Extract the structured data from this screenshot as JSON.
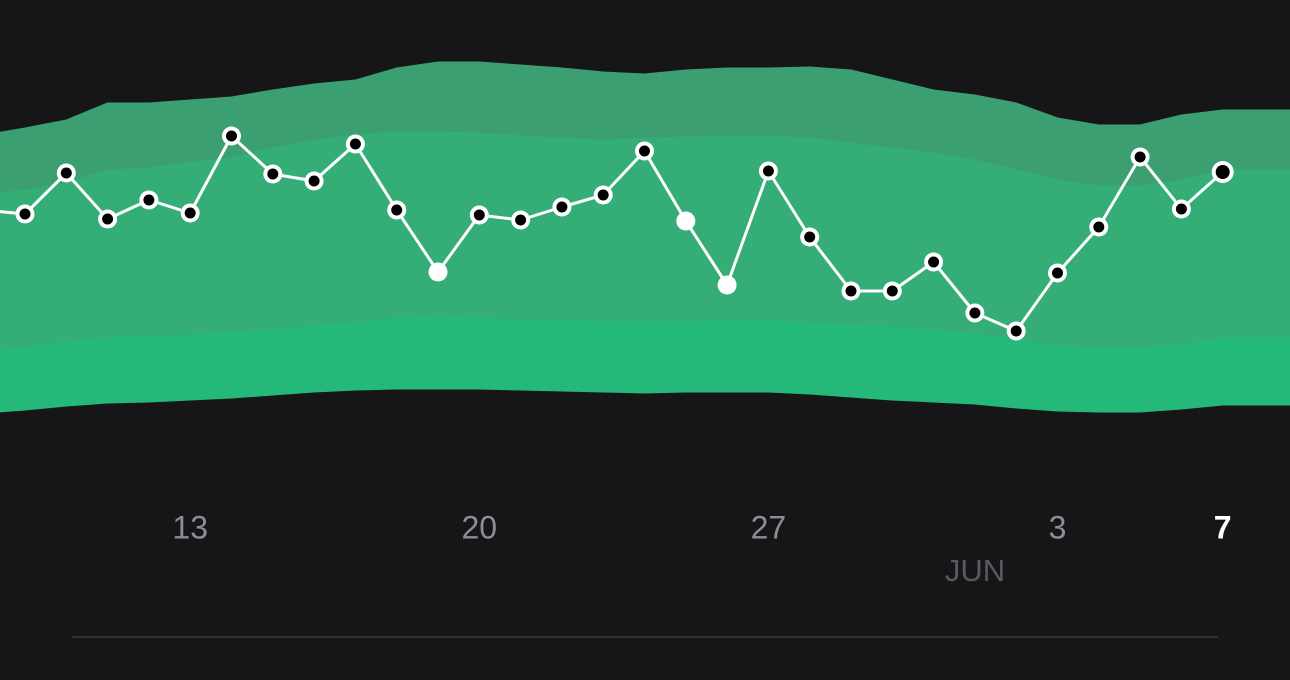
{
  "chart_data": {
    "type": "line",
    "categories": [
      null,
      null,
      null,
      null,
      null,
      "13",
      null,
      null,
      null,
      null,
      null,
      null,
      "20",
      null,
      null,
      null,
      null,
      null,
      null,
      "27",
      null,
      null,
      null,
      null,
      null,
      null,
      "3",
      null,
      null,
      null,
      "7"
    ],
    "month_label": "JUN",
    "ylim": [
      0,
      680
    ],
    "bands": [
      {
        "color": "#3b9f71",
        "upper": [
          545,
          552,
          560,
          577,
          577,
          580,
          583,
          590,
          596,
          600,
          612,
          618,
          618,
          615,
          612,
          608,
          606,
          610,
          612,
          612,
          613,
          610,
          600,
          590,
          585,
          577,
          562,
          555,
          555,
          565,
          570
        ],
        "lower": [
          485,
          490,
          497,
          510,
          512,
          518,
          522,
          532,
          540,
          545,
          548,
          548,
          547,
          544,
          542,
          540,
          542,
          543,
          544,
          544,
          542,
          537,
          532,
          527,
          520,
          510,
          500,
          494,
          494,
          500,
          510
        ]
      },
      {
        "color": "#34ad77",
        "upper": [
          485,
          490,
          497,
          510,
          512,
          518,
          522,
          532,
          540,
          545,
          548,
          548,
          547,
          544,
          542,
          540,
          542,
          543,
          544,
          544,
          542,
          537,
          532,
          527,
          520,
          510,
          500,
          494,
          494,
          500,
          510
        ],
        "lower": [
          328,
          332,
          338,
          342,
          344,
          345,
          348,
          350,
          354,
          357,
          362,
          363,
          362,
          360,
          359,
          358,
          358,
          358,
          359,
          359,
          357,
          355,
          353,
          350,
          346,
          340,
          334,
          332,
          332,
          335,
          342
        ]
      },
      {
        "color": "#24b979",
        "upper": [
          328,
          332,
          338,
          342,
          344,
          345,
          348,
          350,
          354,
          357,
          362,
          363,
          362,
          360,
          359,
          358,
          358,
          358,
          359,
          359,
          357,
          355,
          353,
          350,
          346,
          340,
          334,
          332,
          332,
          335,
          342
        ],
        "lower": [
          267,
          270,
          274,
          277,
          278,
          280,
          282,
          285,
          288,
          290,
          291,
          291,
          291,
          290,
          289,
          288,
          287,
          288,
          288,
          288,
          286,
          283,
          280,
          278,
          276,
          272,
          269,
          268,
          268,
          271,
          275
        ]
      }
    ],
    "series": [
      {
        "color": "#ffffff",
        "values": [
          470,
          466,
          507,
          461,
          480,
          467,
          544,
          506,
          499,
          536,
          470,
          408,
          465,
          460,
          473,
          485,
          529,
          459,
          395,
          509,
          443,
          389,
          389,
          418,
          367,
          349,
          407,
          453,
          523,
          471,
          508
        ]
      }
    ],
    "filled_points": [
      11,
      17,
      18
    ]
  }
}
